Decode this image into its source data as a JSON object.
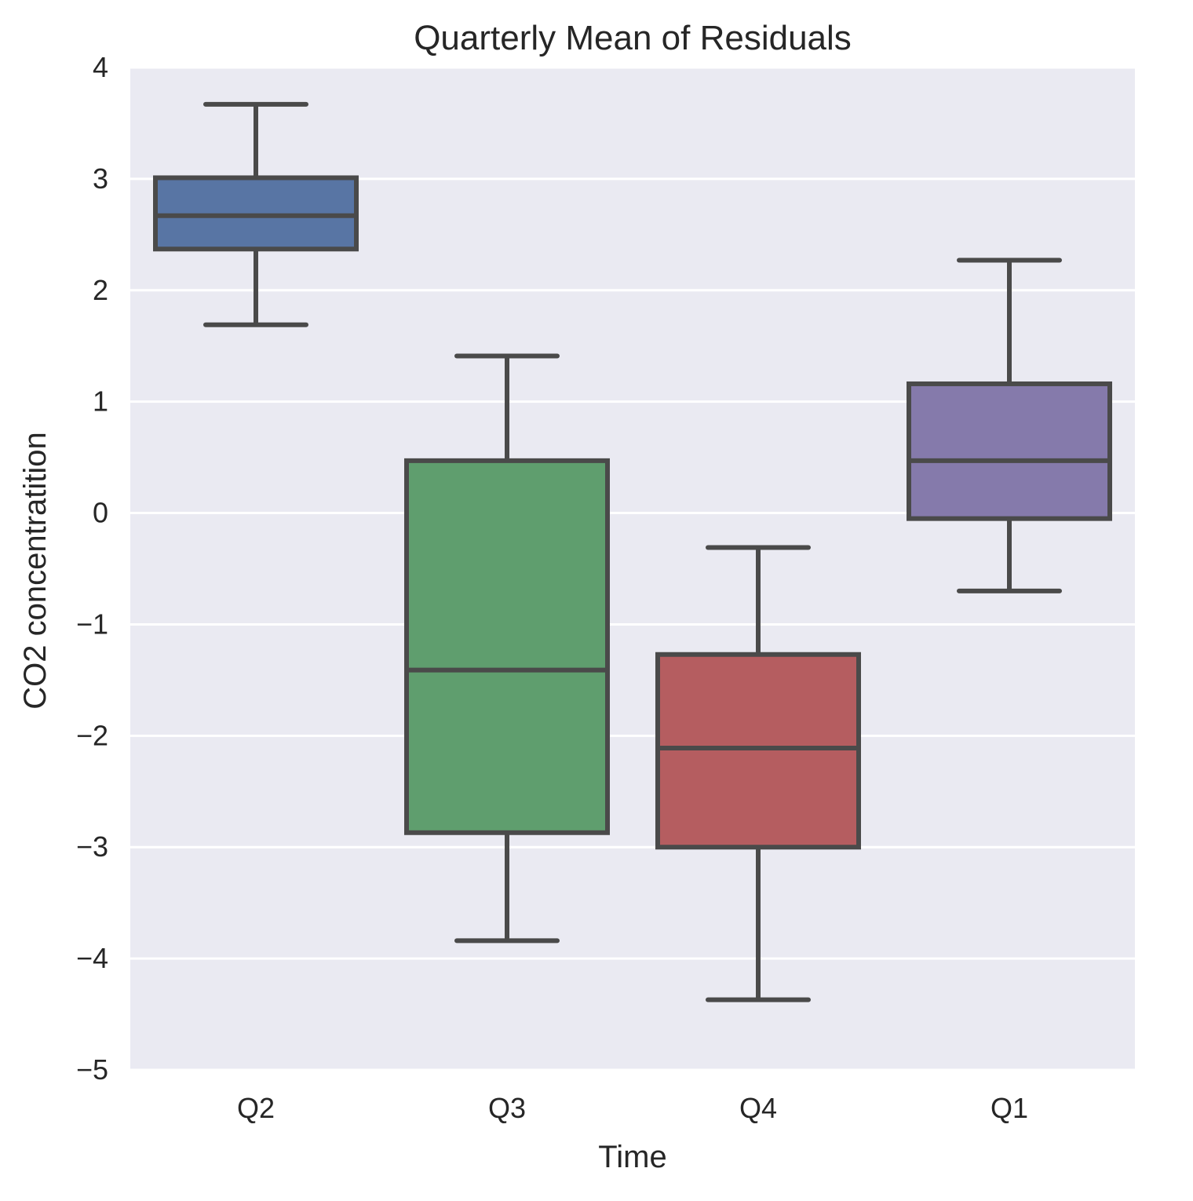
{
  "chart_data": {
    "type": "box",
    "title": "Quarterly Mean of Residuals",
    "xlabel": "Time",
    "ylabel": "CO2 concentratition",
    "ylim": [
      -5,
      4
    ],
    "yticks": [
      4,
      3,
      2,
      1,
      0,
      -1,
      -2,
      -3,
      -4,
      -5
    ],
    "ytick_labels": [
      "4",
      "3",
      "2",
      "1",
      "0",
      "−1",
      "−2",
      "−3",
      "−4",
      "−5"
    ],
    "grid": true,
    "background_color": "#eaeaf2",
    "grid_color": "#ffffff",
    "box_edge_color": "#4a4a4a",
    "categories": [
      "Q2",
      "Q3",
      "Q4",
      "Q1"
    ],
    "boxes": [
      {
        "category": "Q2",
        "whisker_low": 1.69,
        "q1": 2.37,
        "median": 2.67,
        "q3": 3.01,
        "whisker_high": 3.67,
        "color": "#5875a4"
      },
      {
        "category": "Q3",
        "whisker_low": -3.84,
        "q1": -2.87,
        "median": -1.41,
        "q3": 0.47,
        "whisker_high": 1.41,
        "color": "#5f9e6e"
      },
      {
        "category": "Q4",
        "whisker_low": -4.37,
        "q1": -3.0,
        "median": -2.11,
        "q3": -1.27,
        "whisker_high": -0.31,
        "color": "#b55d60"
      },
      {
        "category": "Q1",
        "whisker_low": -0.7,
        "q1": -0.05,
        "median": 0.47,
        "q3": 1.16,
        "whisker_high": 2.27,
        "color": "#857aab"
      }
    ]
  }
}
